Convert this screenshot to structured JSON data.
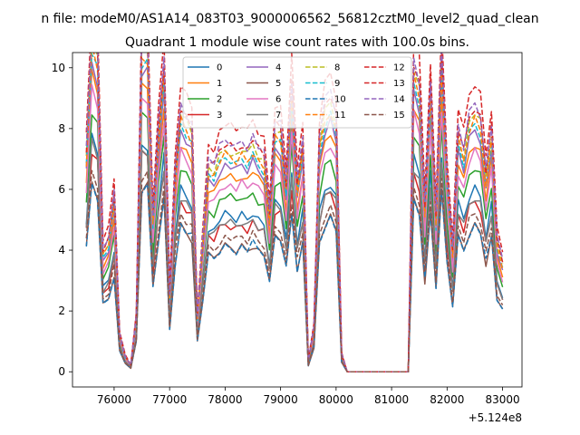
{
  "chart_data": {
    "type": "line",
    "suptitle": "n file: modeM0/AS1A14_083T03_9000006562_56812cztM0_level2_quad_clean",
    "title": "Quadrant 1 module wise count rates with 100.0s bins.",
    "xlabel": "",
    "ylabel": "",
    "x_offset_label": "+5.124e8",
    "xlim": [
      75250,
      83350
    ],
    "ylim": [
      -0.5,
      10.5
    ],
    "x_ticks": [
      76000,
      77000,
      78000,
      79000,
      80000,
      81000,
      82000,
      83000
    ],
    "x_tick_labels": [
      "76000",
      "77000",
      "78000",
      "79000",
      "80000",
      "81000",
      "82000",
      "83000"
    ],
    "y_ticks": [
      0,
      2,
      4,
      6,
      8,
      10
    ],
    "y_tick_labels": [
      "0",
      "2",
      "4",
      "6",
      "8",
      "10"
    ],
    "grid": false,
    "legend_placement": "top-center",
    "legend_columns": 4,
    "colors": [
      "#1f77b4",
      "#ff7f0e",
      "#2ca02c",
      "#d62728",
      "#9467bd",
      "#8c564b",
      "#e377c2",
      "#7f7f7f",
      "#bcbd22",
      "#17becf",
      "#1f77b4",
      "#ff7f0e",
      "#d62728",
      "#d62728",
      "#9467bd",
      "#8c564b"
    ],
    "x": [
      75500,
      75600,
      75700,
      75800,
      75900,
      76000,
      76100,
      76200,
      76300,
      76400,
      76500,
      76600,
      76700,
      76800,
      76900,
      77000,
      77100,
      77200,
      77300,
      77400,
      77500,
      77600,
      77700,
      77800,
      77900,
      78000,
      78100,
      78200,
      78300,
      78400,
      78500,
      78600,
      78700,
      78800,
      78900,
      79000,
      79100,
      79200,
      79300,
      79400,
      79500,
      79600,
      79700,
      79800,
      79900,
      80000,
      80100,
      80200,
      80300,
      81300,
      81400,
      81500,
      81600,
      81700,
      81800,
      81900,
      82000,
      82100,
      82200,
      82300,
      82400,
      82500,
      82600,
      82700,
      82800,
      82900,
      83000
    ],
    "base": [
      1.0,
      1.55,
      1.45,
      0.55,
      0.6,
      0.8,
      0.17,
      0.07,
      0.03,
      0.25,
      1.5,
      1.5,
      0.7,
      1.1,
      1.4,
      0.35,
      0.9,
      1.2,
      1.15,
      1.1,
      0.25,
      0.6,
      0.95,
      0.93,
      1.0,
      1.03,
      1.02,
      1.0,
      1.03,
      1.0,
      1.05,
      1.0,
      0.97,
      0.72,
      1.12,
      1.1,
      0.85,
      1.3,
      0.85,
      1.05,
      0.05,
      0.2,
      1.05,
      1.2,
      1.25,
      1.15,
      0.08,
      0.0,
      0.0,
      0.0,
      1.4,
      1.3,
      0.75,
      1.3,
      0.7,
      1.45,
      0.9,
      0.55,
      1.1,
      1.0,
      1.15,
      1.2,
      1.15,
      0.9,
      1.1,
      0.6,
      0.5
    ],
    "series": [
      {
        "name": "0",
        "style": "solid",
        "scale": 5.0
      },
      {
        "name": "1",
        "style": "solid",
        "scale": 6.3
      },
      {
        "name": "2",
        "style": "solid",
        "scale": 5.6
      },
      {
        "name": "3",
        "style": "solid",
        "scale": 4.7
      },
      {
        "name": "4",
        "style": "solid",
        "scale": 6.6
      },
      {
        "name": "5",
        "style": "solid",
        "scale": 4.0
      },
      {
        "name": "6",
        "style": "solid",
        "scale": 6.0
      },
      {
        "name": "7",
        "style": "solid",
        "scale": 4.8
      },
      {
        "name": "8",
        "style": "dashed",
        "scale": 7.1
      },
      {
        "name": "9",
        "style": "dashed",
        "scale": 6.8
      },
      {
        "name": "10",
        "style": "dashed",
        "scale": 4.0
      },
      {
        "name": "11",
        "style": "dashed",
        "scale": 6.9
      },
      {
        "name": "12",
        "style": "dashed",
        "scale": 7.3
      },
      {
        "name": "13",
        "style": "dashed",
        "scale": 7.9
      },
      {
        "name": "14",
        "style": "dashed",
        "scale": 7.4
      },
      {
        "name": "15",
        "style": "dashed",
        "scale": 4.3
      }
    ]
  }
}
